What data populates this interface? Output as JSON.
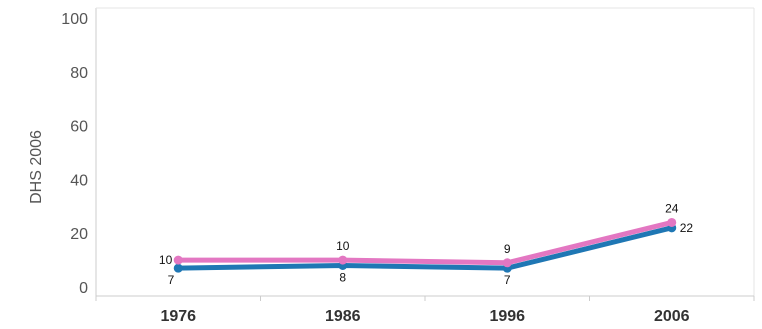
{
  "chart_data": {
    "type": "line",
    "title": "",
    "xlabel": "",
    "ylabel": "DHS 2006",
    "categories": [
      "1976",
      "1986",
      "1996",
      "2006"
    ],
    "yticks": [
      "0",
      "20",
      "40",
      "60",
      "80",
      "100"
    ],
    "ylim": [
      0,
      100
    ],
    "grid": false,
    "legend": "none",
    "series": [
      {
        "color": "#1f77b4",
        "values": [
          7,
          8,
          7,
          22
        ]
      },
      {
        "color": "#e377c2",
        "values": [
          10,
          10,
          9,
          24
        ]
      }
    ]
  }
}
